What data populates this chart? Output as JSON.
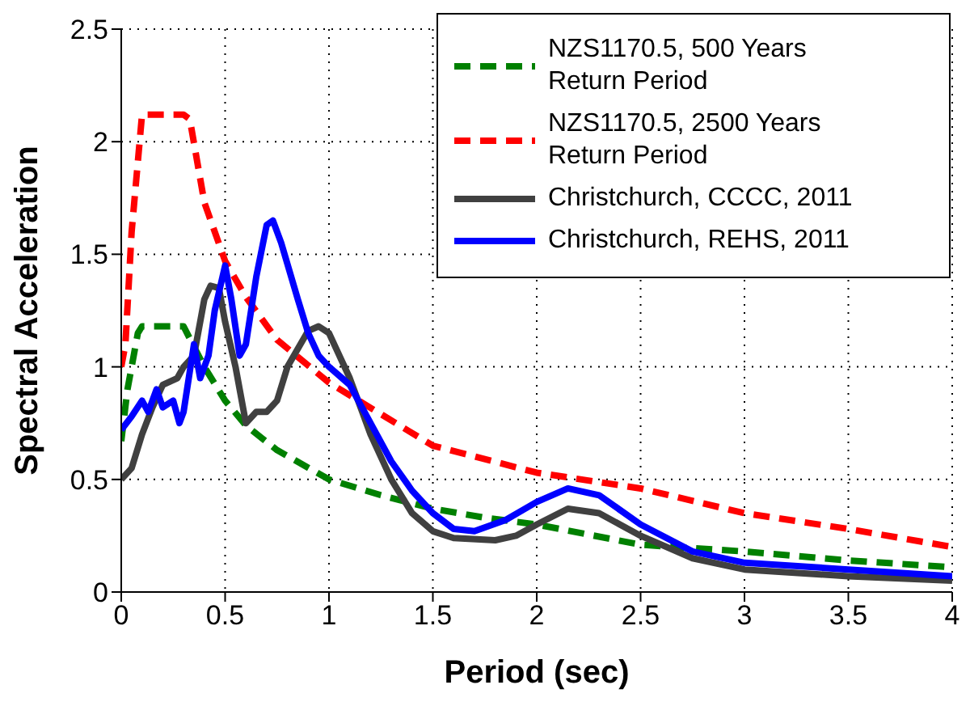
{
  "chart_data": {
    "type": "line",
    "xlabel": "Period (sec)",
    "ylabel": "Spectral Acceleration",
    "xlim": [
      0,
      4
    ],
    "xticks": [
      0,
      0.5,
      1,
      1.5,
      2,
      2.5,
      3,
      3.5,
      4
    ],
    "ylim": [
      0,
      2.5
    ],
    "yticks": [
      0,
      0.5,
      1,
      1.5,
      2,
      2.5
    ],
    "grid": true,
    "legend": "top right",
    "marker": "none",
    "series": [
      {
        "name": "NZS1170.5, 500 Years Return Period",
        "color": "#008000",
        "line_style": "dashed",
        "x": [
          0,
          0.03,
          0.08,
          0.1,
          0.3,
          0.4,
          0.5,
          0.6,
          0.75,
          1.0,
          1.25,
          1.5,
          1.75,
          2,
          2.5,
          3,
          3.5,
          4
        ],
        "values": [
          0.67,
          0.9,
          1.15,
          1.18,
          1.18,
          1.0,
          0.85,
          0.74,
          0.63,
          0.5,
          0.43,
          0.37,
          0.33,
          0.3,
          0.21,
          0.18,
          0.14,
          0.11
        ]
      },
      {
        "name": "NZS1170.5, 2500 Years Return Period",
        "color": "#ff0000",
        "line_style": "dashed",
        "x": [
          0,
          0.02,
          0.05,
          0.1,
          0.3,
          0.33,
          0.4,
          0.5,
          0.6,
          0.75,
          1.0,
          1.5,
          2,
          2.5,
          3,
          3.5,
          4
        ],
        "values": [
          1.0,
          1.1,
          1.6,
          2.12,
          2.12,
          2.1,
          1.73,
          1.47,
          1.31,
          1.12,
          0.93,
          0.65,
          0.53,
          0.46,
          0.35,
          0.28,
          0.2
        ]
      },
      {
        "name": "Christchurch, CCCC, 2011",
        "color": "#404040",
        "line_style": "solid",
        "x": [
          0,
          0.05,
          0.1,
          0.15,
          0.2,
          0.27,
          0.3,
          0.35,
          0.4,
          0.43,
          0.47,
          0.5,
          0.55,
          0.6,
          0.65,
          0.7,
          0.75,
          0.8,
          0.9,
          0.95,
          1.0,
          1.1,
          1.2,
          1.3,
          1.4,
          1.5,
          1.6,
          1.8,
          1.9,
          2.0,
          2.15,
          2.3,
          2.5,
          2.75,
          3.0,
          3.5,
          4.0
        ],
        "values": [
          0.5,
          0.55,
          0.7,
          0.82,
          0.92,
          0.95,
          1.0,
          1.05,
          1.3,
          1.36,
          1.35,
          1.2,
          1.0,
          0.75,
          0.8,
          0.8,
          0.85,
          1.0,
          1.16,
          1.18,
          1.15,
          0.95,
          0.7,
          0.5,
          0.35,
          0.27,
          0.24,
          0.23,
          0.25,
          0.3,
          0.37,
          0.35,
          0.25,
          0.15,
          0.1,
          0.07,
          0.05
        ]
      },
      {
        "name": "Christchurch, REHS, 2011",
        "color": "#0000ff",
        "line_style": "solid",
        "x": [
          0,
          0.05,
          0.1,
          0.13,
          0.17,
          0.2,
          0.25,
          0.28,
          0.3,
          0.35,
          0.38,
          0.42,
          0.45,
          0.5,
          0.53,
          0.57,
          0.6,
          0.65,
          0.7,
          0.73,
          0.77,
          0.85,
          0.9,
          0.95,
          1.0,
          1.1,
          1.2,
          1.3,
          1.4,
          1.5,
          1.6,
          1.7,
          1.85,
          2.0,
          2.15,
          2.3,
          2.5,
          2.75,
          3.0,
          3.5,
          4.0
        ],
        "values": [
          0.72,
          0.78,
          0.85,
          0.8,
          0.9,
          0.82,
          0.85,
          0.75,
          0.8,
          1.1,
          0.95,
          1.05,
          1.25,
          1.45,
          1.3,
          1.05,
          1.1,
          1.4,
          1.63,
          1.65,
          1.55,
          1.3,
          1.15,
          1.05,
          1.0,
          0.92,
          0.75,
          0.58,
          0.45,
          0.35,
          0.28,
          0.27,
          0.32,
          0.4,
          0.46,
          0.43,
          0.3,
          0.18,
          0.13,
          0.1,
          0.07
        ]
      }
    ]
  }
}
